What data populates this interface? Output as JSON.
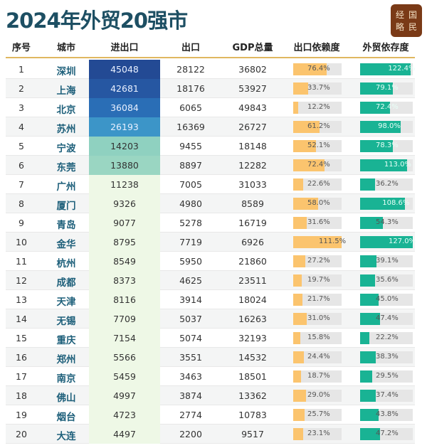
{
  "title": "2024年外贸20强市",
  "logo": {
    "chars": [
      "经",
      "国",
      "略",
      "民"
    ]
  },
  "colors": {
    "title": "#1d4f63",
    "city": "#1d5f7a",
    "export_bar": "#fbc46e",
    "trade_bar": "#19b394",
    "track": "#e6e6e6",
    "header_rule": "#e0b760"
  },
  "headers": [
    "序号",
    "城市",
    "进出口",
    "出口",
    "GDP总量",
    "出口依赖度",
    "外贸依存度"
  ],
  "chart_data": {
    "type": "table",
    "columns": [
      "序号",
      "城市",
      "进出口",
      "出口",
      "GDP总量",
      "出口依赖度",
      "外贸依存度"
    ],
    "rows": [
      {
        "rank": "1",
        "city": "深圳",
        "trade": "45048",
        "export": "28122",
        "gdp": "36802",
        "export_dep": "76.4%",
        "trade_dep": "122.4%"
      },
      {
        "rank": "2",
        "city": "上海",
        "trade": "42681",
        "export": "18176",
        "gdp": "53927",
        "export_dep": "33.7%",
        "trade_dep": "79.1%"
      },
      {
        "rank": "3",
        "city": "北京",
        "trade": "36084",
        "export": "6065",
        "gdp": "49843",
        "export_dep": "12.2%",
        "trade_dep": "72.4%"
      },
      {
        "rank": "4",
        "city": "苏州",
        "trade": "26193",
        "export": "16369",
        "gdp": "26727",
        "export_dep": "61.2%",
        "trade_dep": "98.0%"
      },
      {
        "rank": "5",
        "city": "宁波",
        "trade": "14203",
        "export": "9455",
        "gdp": "18148",
        "export_dep": "52.1%",
        "trade_dep": "78.3%"
      },
      {
        "rank": "6",
        "city": "东莞",
        "trade": "13880",
        "export": "8897",
        "gdp": "12282",
        "export_dep": "72.4%",
        "trade_dep": "113.0%"
      },
      {
        "rank": "7",
        "city": "广州",
        "trade": "11238",
        "export": "7005",
        "gdp": "31033",
        "export_dep": "22.6%",
        "trade_dep": "36.2%"
      },
      {
        "rank": "8",
        "city": "厦门",
        "trade": "9326",
        "export": "4980",
        "gdp": "8589",
        "export_dep": "58.0%",
        "trade_dep": "108.6%"
      },
      {
        "rank": "9",
        "city": "青岛",
        "trade": "9077",
        "export": "5278",
        "gdp": "16719",
        "export_dep": "31.6%",
        "trade_dep": "54.3%"
      },
      {
        "rank": "10",
        "city": "金华",
        "trade": "8795",
        "export": "7719",
        "gdp": "6926",
        "export_dep": "111.5%",
        "trade_dep": "127.0%"
      },
      {
        "rank": "11",
        "city": "杭州",
        "trade": "8549",
        "export": "5950",
        "gdp": "21860",
        "export_dep": "27.2%",
        "trade_dep": "39.1%"
      },
      {
        "rank": "12",
        "city": "成都",
        "trade": "8373",
        "export": "4625",
        "gdp": "23511",
        "export_dep": "19.7%",
        "trade_dep": "35.6%"
      },
      {
        "rank": "13",
        "city": "天津",
        "trade": "8116",
        "export": "3914",
        "gdp": "18024",
        "export_dep": "21.7%",
        "trade_dep": "45.0%"
      },
      {
        "rank": "14",
        "city": "无锡",
        "trade": "7709",
        "export": "5037",
        "gdp": "16263",
        "export_dep": "31.0%",
        "trade_dep": "47.4%"
      },
      {
        "rank": "15",
        "city": "重庆",
        "trade": "7154",
        "export": "5074",
        "gdp": "32193",
        "export_dep": "15.8%",
        "trade_dep": "22.2%"
      },
      {
        "rank": "16",
        "city": "郑州",
        "trade": "5566",
        "export": "3551",
        "gdp": "14532",
        "export_dep": "24.4%",
        "trade_dep": "38.3%"
      },
      {
        "rank": "17",
        "city": "南京",
        "trade": "5459",
        "export": "3463",
        "gdp": "18501",
        "export_dep": "18.7%",
        "trade_dep": "29.5%"
      },
      {
        "rank": "18",
        "city": "佛山",
        "trade": "4997",
        "export": "3874",
        "gdp": "13362",
        "export_dep": "29.0%",
        "trade_dep": "37.4%"
      },
      {
        "rank": "19",
        "city": "烟台",
        "trade": "4723",
        "export": "2774",
        "gdp": "10783",
        "export_dep": "25.7%",
        "trade_dep": "43.8%"
      },
      {
        "rank": "20",
        "city": "大连",
        "trade": "4497",
        "export": "2200",
        "gdp": "9517",
        "export_dep": "23.1%",
        "trade_dep": "47.2%"
      }
    ]
  }
}
